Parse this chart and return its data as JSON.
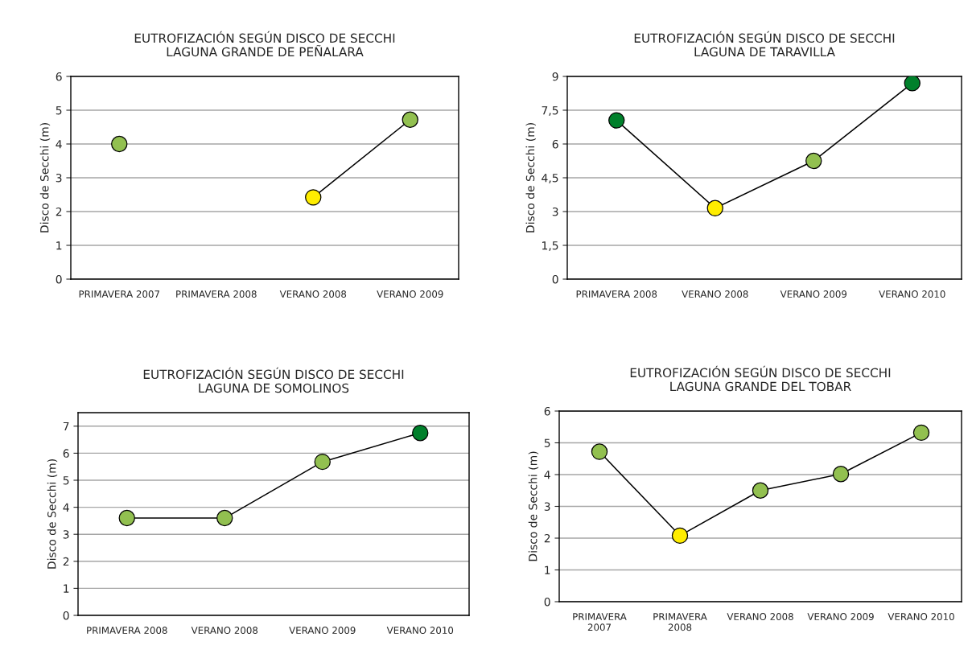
{
  "chart_data": [
    {
      "type": "line",
      "title": "EUTROFIZACIÓN SEGÚN DISCO DE SECCHI",
      "subtitle": "LAGUNA GRANDE DE PEÑALARA",
      "ylabel": "Disco de Secchi (m)",
      "categories": [
        "PRIMAVERA 2007",
        "PRIMAVERA 2008",
        "VERANO 2008",
        "VERANO 2009"
      ],
      "series": [
        {
          "color": "#000000",
          "colors": [
            "#92c050",
            null,
            "#ffed00",
            "#92c050"
          ],
          "values": [
            4.0,
            null,
            2.42,
            4.72
          ]
        }
      ],
      "ylim": [
        0,
        6
      ],
      "yticks": [
        0,
        1,
        2,
        3,
        4,
        5,
        6
      ],
      "grid": "y",
      "marker": "circle",
      "line_style": "solid"
    },
    {
      "type": "line",
      "title": "EUTROFIZACIÓN SEGÚN DISCO DE SECCHI",
      "subtitle": "LAGUNA DE TARAVILLA",
      "ylabel": "Disco de Secchi (m)",
      "categories": [
        "PRIMAVERA 2008",
        "VERANO 2008",
        "VERANO 2009",
        "VERANO 2010"
      ],
      "series": [
        {
          "color": "#000000",
          "colors": [
            "#00802b",
            "#ffed00",
            "#92c050",
            "#00802b"
          ],
          "values": [
            7.05,
            3.15,
            5.25,
            8.7
          ]
        }
      ],
      "ylim": [
        0,
        9
      ],
      "yticks": [
        0,
        {
          "value": 1.5,
          "label": "1,5"
        },
        3,
        {
          "value": 4.5,
          "label": "4,5"
        },
        6,
        {
          "value": 7.5,
          "label": "7,5"
        },
        9
      ],
      "grid": "y",
      "marker": "circle",
      "line_style": "solid"
    },
    {
      "type": "line",
      "title": "EUTROFIZACIÓN SEGÚN DISCO DE SECCHI",
      "subtitle": "LAGUNA DE SOMOLINOS",
      "ylabel": "Disco de Secchi (m)",
      "categories": [
        "PRIMAVERA 2008",
        "VERANO 2008",
        "VERANO 2009",
        "VERANO 2010"
      ],
      "series": [
        {
          "color": "#000000",
          "colors": [
            "#92c050",
            "#92c050",
            "#92c050",
            "#00802b"
          ],
          "values": [
            3.6,
            3.6,
            5.68,
            6.75
          ]
        }
      ],
      "ylim": [
        0,
        7.5
      ],
      "yticks": [
        0,
        1,
        2,
        3,
        4,
        5,
        6,
        7
      ],
      "grid": "y",
      "marker": "circle",
      "line_style": "solid"
    },
    {
      "type": "line",
      "title": "EUTROFIZACIÓN SEGÚN DISCO DE SECCHI",
      "subtitle": "LAGUNA GRANDE DEL TOBAR",
      "ylabel": "Disco de Secchi (m)",
      "categories": [
        "PRIMAVERA\n2007",
        "PRIMAVERA\n2008",
        "VERANO 2008",
        "VERANO 2009",
        "VERANO 2010"
      ],
      "series": [
        {
          "color": "#000000",
          "colors": [
            "#92c050",
            "#ffed00",
            "#92c050",
            "#92c050",
            "#92c050"
          ],
          "values": [
            4.72,
            2.08,
            3.5,
            4.02,
            5.32
          ]
        }
      ],
      "ylim": [
        0,
        6
      ],
      "yticks": [
        0,
        1,
        2,
        3,
        4,
        5,
        6
      ],
      "grid": "y",
      "marker": "circle",
      "line_style": "solid"
    }
  ]
}
